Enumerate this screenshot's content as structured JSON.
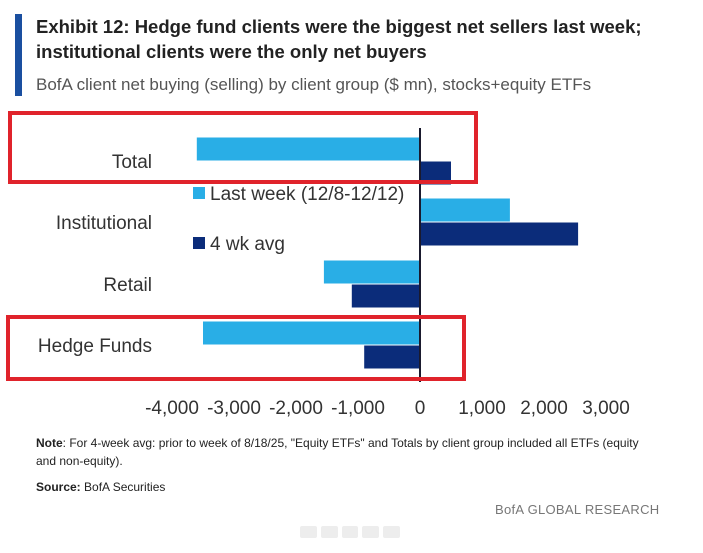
{
  "header": {
    "title": "Exhibit 12: Hedge fund clients were the biggest net sellers last week; institutional clients were the only net buyers",
    "subtitle": "BofA client net buying (selling) by client group ($ mn), stocks+equity ETFs"
  },
  "chart_data": {
    "type": "bar",
    "orientation": "horizontal",
    "categories": [
      "Total",
      "Institutional",
      "Retail",
      "Hedge Funds"
    ],
    "series": [
      {
        "name": "Last week (12/8-12/12)",
        "color": "#29aee6",
        "values": [
          -3600,
          1450,
          -1550,
          -3500
        ]
      },
      {
        "name": "4 wk avg",
        "color": "#0b2c7a",
        "values": [
          500,
          2550,
          -1100,
          -900
        ]
      }
    ],
    "xlim": [
      -4000,
      3000
    ],
    "xticks": [
      "-4,000",
      "-3,000",
      "-2,000",
      "-1,000",
      "0",
      "1,000",
      "2,000",
      "3,000"
    ],
    "legend_position": "inside-left",
    "highlighted_categories": [
      "Total",
      "Hedge Funds"
    ],
    "highlight_color": "#e0232b",
    "zero_line_color": "#1a1a2e",
    "grid": false
  },
  "footer": {
    "note_label": "Note",
    "note_text": ": For 4-week avg: prior to week of 8/18/25, \"Equity ETFs\" and Totals by client group included all ETFs (equity and non-equity).",
    "source_label": "Source:",
    "source_text": " BofA Securities",
    "branding": "BofA GLOBAL RESEARCH"
  }
}
